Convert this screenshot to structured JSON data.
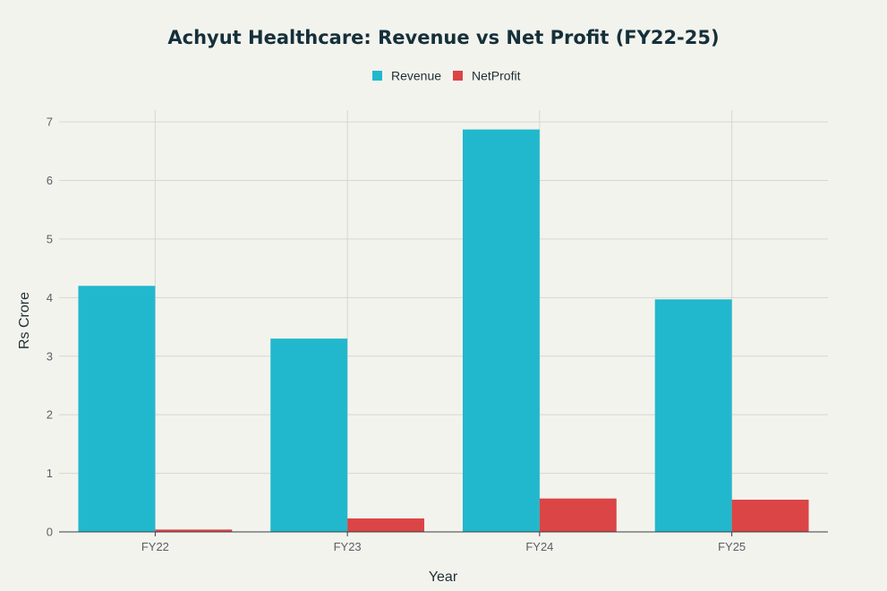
{
  "chart_data": {
    "type": "bar",
    "title": "Achyut Healthcare: Revenue vs Net Profit (FY22-25)",
    "xlabel": "Year",
    "ylabel": "Rs Crore",
    "categories": [
      "FY22",
      "FY23",
      "FY24",
      "FY25"
    ],
    "series": [
      {
        "name": "Revenue",
        "color": "#21b8cd",
        "values": [
          4.2,
          3.3,
          6.87,
          3.97
        ]
      },
      {
        "name": "NetProfit",
        "color": "#db4545",
        "values": [
          0.04,
          0.23,
          0.57,
          0.55
        ]
      }
    ],
    "ylim": [
      0,
      7.2
    ],
    "yticks": [
      0,
      1,
      2,
      3,
      4,
      5,
      6,
      7
    ],
    "grid": true,
    "legend_position": "top-center"
  }
}
